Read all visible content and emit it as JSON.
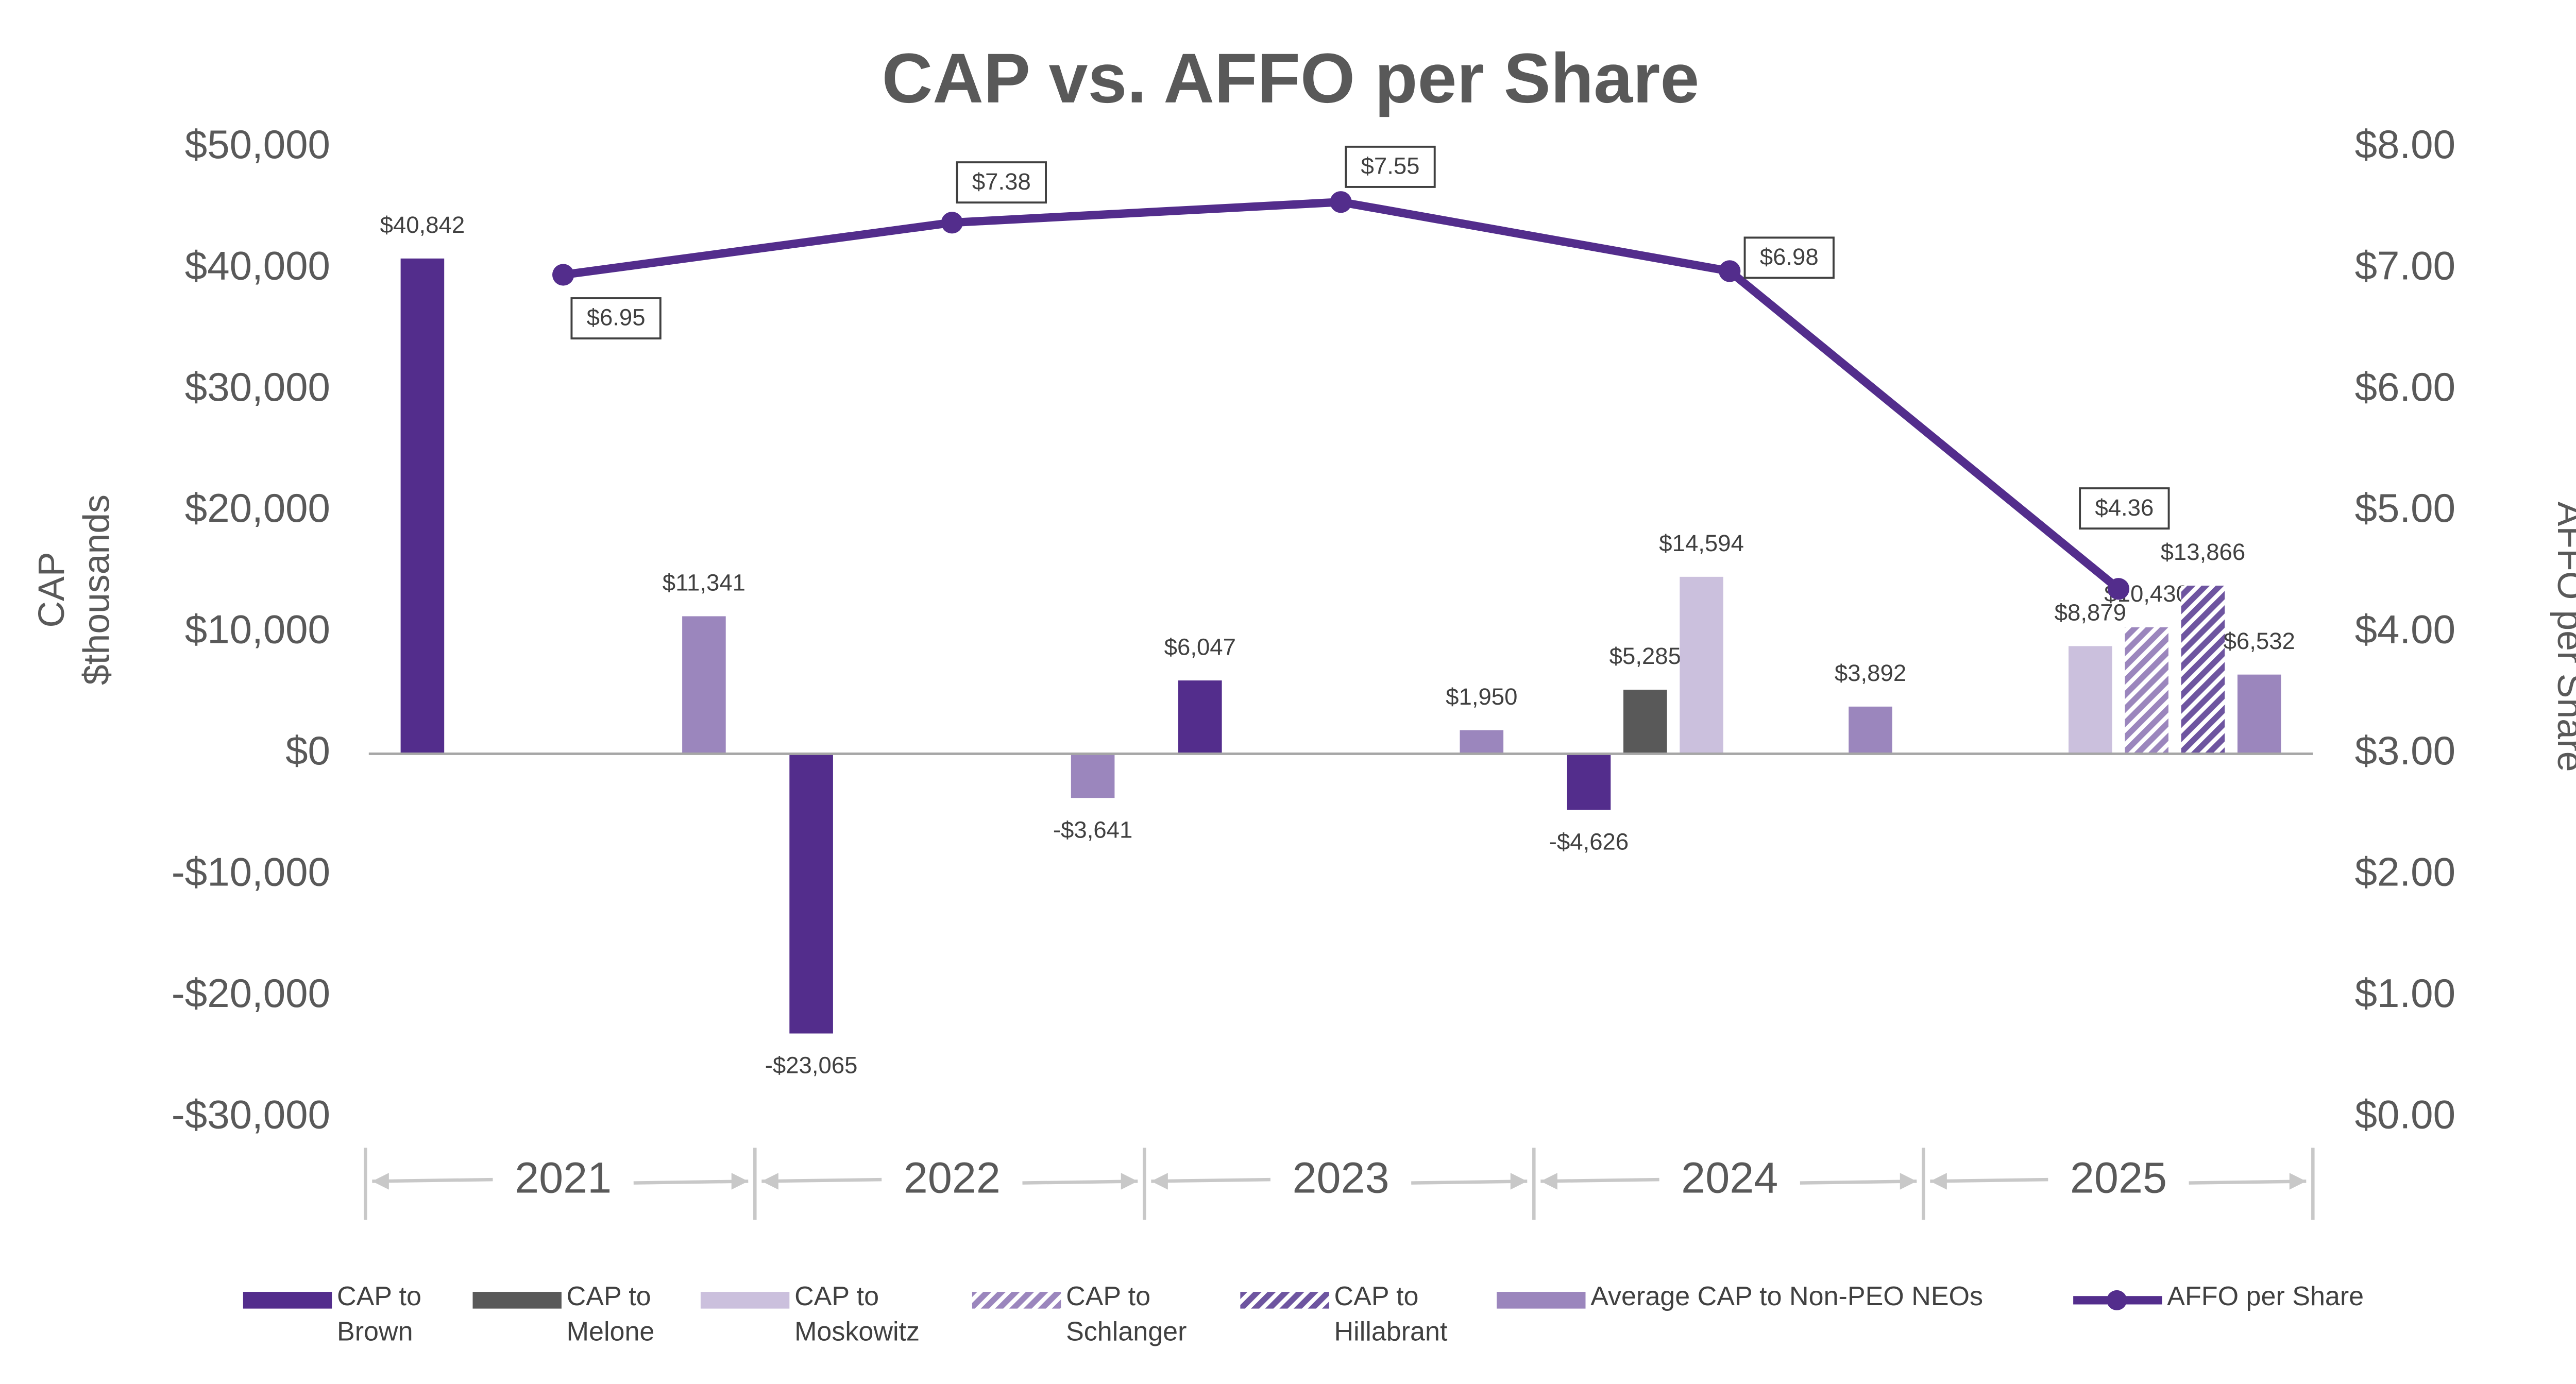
{
  "chart_data": {
    "type": "bar",
    "title": "CAP vs. AFFO per Share",
    "ylabel": "CAP $thousands",
    "y2label": "AFFO per Share",
    "categories": [
      "2021",
      "2022",
      "2023",
      "2024",
      "2025"
    ],
    "ylim": [
      -30000,
      50000
    ],
    "yticks": [
      {
        "value": -30000,
        "label": "-$30,000"
      },
      {
        "value": -20000,
        "label": "-$20,000"
      },
      {
        "value": -10000,
        "label": "-$10,000"
      },
      {
        "value": 0,
        "label": "$0"
      },
      {
        "value": 10000,
        "label": "$10,000"
      },
      {
        "value": 20000,
        "label": "$20,000"
      },
      {
        "value": 30000,
        "label": "$30,000"
      },
      {
        "value": 40000,
        "label": "$40,000"
      },
      {
        "value": 50000,
        "label": "$50,000"
      }
    ],
    "y2lim": [
      0,
      8
    ],
    "y2ticks": [
      {
        "value": 0,
        "label": "$0.00"
      },
      {
        "value": 1,
        "label": "$1.00"
      },
      {
        "value": 2,
        "label": "$2.00"
      },
      {
        "value": 3,
        "label": "$3.00"
      },
      {
        "value": 4,
        "label": "$4.00"
      },
      {
        "value": 5,
        "label": "$5.00"
      },
      {
        "value": 6,
        "label": "$6.00"
      },
      {
        "value": 7,
        "label": "$7.00"
      },
      {
        "value": 8,
        "label": "$8.00"
      }
    ],
    "legend": "bottom",
    "series": [
      {
        "name": "CAP to Brown",
        "color": "#532d8c",
        "values": [
          40842,
          -23065,
          6047,
          -4626,
          null
        ],
        "value_labels": [
          "$40,842",
          "-$23,065",
          "$6,047",
          "-$4,626",
          null
        ]
      },
      {
        "name": "CAP to Melone",
        "color": "#595959",
        "values": [
          null,
          null,
          null,
          5285,
          null
        ],
        "value_labels": [
          null,
          null,
          null,
          "$5,285",
          null
        ]
      },
      {
        "name": "CAP to Moskowitz",
        "color": "#cbc0dd",
        "values": [
          null,
          null,
          null,
          14594,
          8879
        ],
        "value_labels": [
          null,
          null,
          null,
          "$14,594",
          "$8,879"
        ]
      },
      {
        "name": "CAP to Schlanger",
        "color": "#9b86bd",
        "hatch": true,
        "values": [
          null,
          null,
          null,
          null,
          10430
        ],
        "value_labels": [
          null,
          null,
          null,
          null,
          "$10,430"
        ]
      },
      {
        "name": "CAP to Hillabrant",
        "color": "#6e55a0",
        "hatch": true,
        "values": [
          null,
          null,
          null,
          null,
          13866
        ],
        "value_labels": [
          null,
          null,
          null,
          null,
          "$13,866"
        ]
      },
      {
        "name": "Average CAP to Non-PEO NEOs",
        "color": "#9b86bd",
        "values": [
          11341,
          -3641,
          1950,
          3892,
          6532
        ],
        "value_labels": [
          "$11,341",
          "-$3,641",
          "$1,950",
          "$3,892",
          "$6,532"
        ]
      },
      {
        "name": "AFFO per Share",
        "type": "line",
        "axis": "y2",
        "color": "#532d8c",
        "values": [
          6.95,
          7.38,
          7.55,
          6.98,
          4.36
        ],
        "value_labels": [
          "$6.95",
          "$7.38",
          "$7.55",
          "$6.98",
          "$4.36"
        ]
      }
    ]
  }
}
